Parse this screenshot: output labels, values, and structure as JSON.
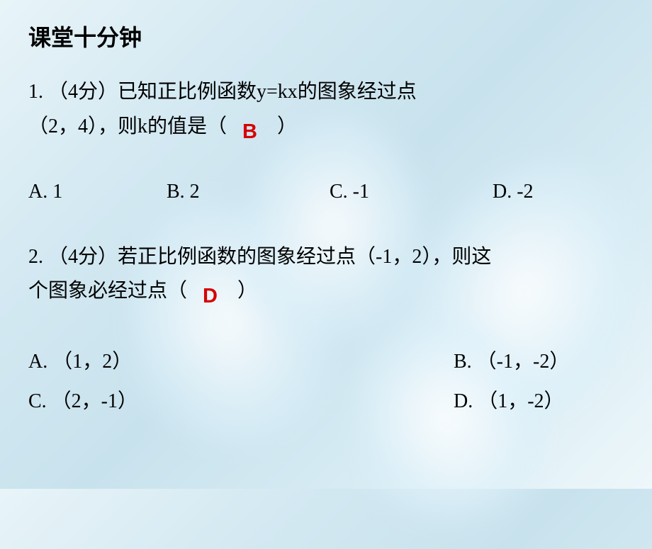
{
  "title": "课堂十分钟",
  "colors": {
    "text": "#000000",
    "answer": "#d60000",
    "bg_gradient_start": "#e8f4f8",
    "bg_gradient_end": "#eef7fa"
  },
  "typography": {
    "title_fontsize": 32,
    "body_fontsize": 28,
    "answer_fontsize": 29,
    "body_font": "SimSun",
    "title_font": "Microsoft YaHei"
  },
  "question1": {
    "points": "4分",
    "text_line1": "1. （4分）已知正比例函数y=kx的图象经过点",
    "text_line2_before": "（2，4），则k的值是（　",
    "text_line2_after": "　）",
    "answer": "B",
    "options": {
      "A": "A. 1",
      "B": "B. 2",
      "C": "C. -1",
      "D": "D. -2"
    }
  },
  "question2": {
    "points": "4分",
    "text_line1": "2. （4分）若正比例函数的图象经过点（-1，2），则这",
    "text_line2_before": "个图象必经过点（　",
    "text_line2_after": "　）",
    "answer": "D",
    "options": {
      "A": "A. （1，2）",
      "B": "B. （-1，-2）",
      "C": "C. （2，-1）",
      "D": "D. （1，-2）"
    }
  }
}
